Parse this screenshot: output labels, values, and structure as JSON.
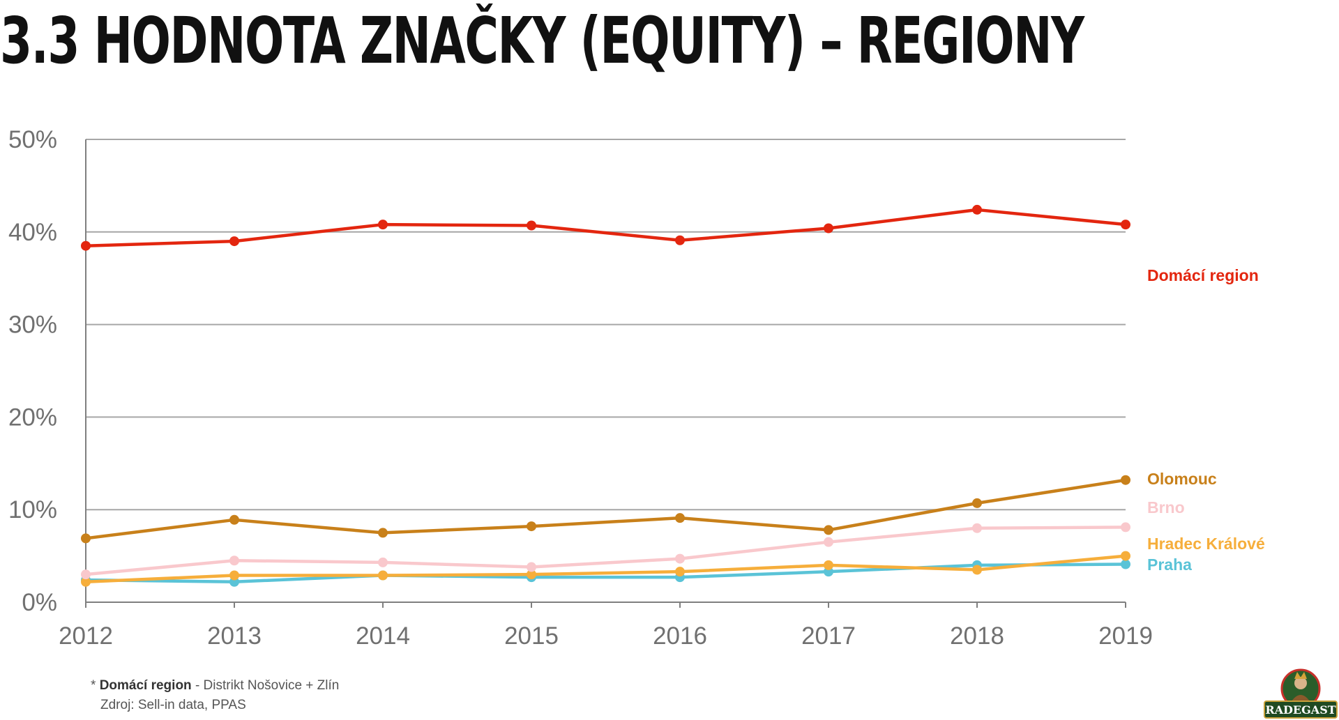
{
  "slide": {
    "title": "3.3 HODNOTA ZNAČKY (EQUITY) – REGIONY"
  },
  "chart_data": {
    "type": "line",
    "title": "",
    "xlabel": "",
    "ylabel": "",
    "x": [
      "2012",
      "2013",
      "2014",
      "2015",
      "2016",
      "2017",
      "2018",
      "2019"
    ],
    "ylim": [
      0,
      50
    ],
    "y_ticks": [
      "0%",
      "10%",
      "20%",
      "30%",
      "40%",
      "50%"
    ],
    "y_tick_values": [
      0,
      10,
      20,
      30,
      40,
      50
    ],
    "grid": true,
    "legend": "direct labels at right end of lines",
    "series": [
      {
        "name": "Domácí region",
        "color": "#e3260f",
        "values": [
          38.5,
          39.0,
          40.8,
          40.7,
          39.1,
          40.4,
          42.4,
          40.8
        ]
      },
      {
        "name": "Olomouc",
        "color": "#c8801a",
        "values": [
          6.9,
          8.9,
          7.5,
          8.2,
          9.1,
          7.8,
          10.7,
          13.2
        ]
      },
      {
        "name": "Brno",
        "color": "#f9c8cc",
        "values": [
          3.0,
          4.5,
          4.3,
          3.8,
          4.7,
          6.5,
          8.0,
          8.1
        ]
      },
      {
        "name": "Hradec Králové",
        "color": "#f6ae3b",
        "values": [
          2.2,
          2.9,
          2.9,
          3.0,
          3.3,
          4.0,
          3.5,
          5.0
        ]
      },
      {
        "name": "Praha",
        "color": "#5ac3d7",
        "values": [
          2.4,
          2.2,
          2.9,
          2.7,
          2.7,
          3.3,
          4.0,
          4.1
        ]
      }
    ]
  },
  "footnote": {
    "asterisk": "* ",
    "bold_label": "Domácí region",
    "text": " - Distrikt Nošovice + Zlín",
    "source": "Zdroj: Sell-in data, PPAS"
  },
  "logo": {
    "text": "RADEGAST"
  }
}
